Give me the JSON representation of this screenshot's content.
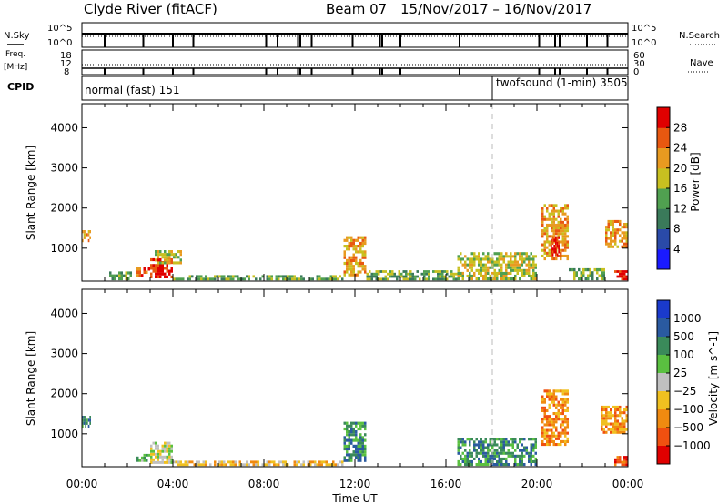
{
  "header": {
    "station": "Clyde River (fitACF)",
    "beam": "Beam 07",
    "dates": "15/Nov/2017 – 16/Nov/2017"
  },
  "params": {
    "nsky_label": "N.Sky",
    "nsky_top": "10^5",
    "nsky_bottom": "10^0",
    "nsearch_label": "N.Search",
    "nsearch_top": "10^5",
    "nsearch_bottom": "10^0",
    "freq_label": "Freq.",
    "freq_unit": "[MHz]",
    "freq_top": "18",
    "freq_mid": "12",
    "freq_bottom": "8",
    "nave_label": "Nave",
    "nave_top": "60",
    "nave_mid": "30",
    "nave_bottom": "0",
    "cpid_label": "CPID",
    "cpid_modes": [
      {
        "name": "normal (fast) 151",
        "start_hour": 0
      },
      {
        "name": "twofsound (1-min) 3505",
        "start_hour": 18
      }
    ]
  },
  "chart_data": [
    {
      "type": "heatmap",
      "title": "",
      "xlabel": "Time UT",
      "ylabel": "Slant Range [km]",
      "xlim": [
        0,
        24
      ],
      "ylim": [
        180,
        4600
      ],
      "x_ticks": [
        "00:00",
        "04:00",
        "08:00",
        "12:00",
        "16:00",
        "20:00",
        "00:00"
      ],
      "y_ticks": [
        1000,
        2000,
        3000,
        4000
      ],
      "colorbar": {
        "label": "Power [dB]",
        "ticks": [
          4,
          8,
          12,
          16,
          20,
          24,
          28
        ],
        "range": [
          0,
          32
        ],
        "colors": [
          "#1a1aff",
          "#2a4aa8",
          "#3a7a5a",
          "#50a050",
          "#c8c020",
          "#e89a20",
          "#e85810",
          "#e00000"
        ]
      },
      "echo_regions": [
        {
          "t0": 0.0,
          "t1": 0.4,
          "r0": 1150,
          "r1": 1450,
          "level": 5
        },
        {
          "t0": 1.2,
          "t1": 2.2,
          "r0": 200,
          "r1": 420,
          "level": 3
        },
        {
          "t0": 2.4,
          "t1": 3.0,
          "r0": 280,
          "r1": 520,
          "level": 6
        },
        {
          "t0": 3.0,
          "t1": 4.0,
          "r0": 250,
          "r1": 750,
          "level": 7
        },
        {
          "t0": 3.2,
          "t1": 4.4,
          "r0": 600,
          "r1": 950,
          "level": 4
        },
        {
          "t0": 4.0,
          "t1": 11.5,
          "r0": 200,
          "r1": 330,
          "level": 3
        },
        {
          "t0": 11.5,
          "t1": 12.5,
          "r0": 300,
          "r1": 1300,
          "level": 5
        },
        {
          "t0": 12.5,
          "t1": 16.5,
          "r0": 200,
          "r1": 450,
          "level": 3
        },
        {
          "t0": 16.5,
          "t1": 20.0,
          "r0": 200,
          "r1": 900,
          "level": 4
        },
        {
          "t0": 20.2,
          "t1": 21.4,
          "r0": 700,
          "r1": 2100,
          "level": 5
        },
        {
          "t0": 20.6,
          "t1": 21.0,
          "r0": 800,
          "r1": 1300,
          "level": 7
        },
        {
          "t0": 21.4,
          "t1": 23.0,
          "r0": 200,
          "r1": 500,
          "level": 3
        },
        {
          "t0": 23.0,
          "t1": 24.0,
          "r0": 1000,
          "r1": 1700,
          "level": 5
        },
        {
          "t0": 23.4,
          "t1": 24.0,
          "r0": 200,
          "r1": 450,
          "level": 7
        }
      ]
    },
    {
      "type": "heatmap",
      "title": "",
      "xlabel": "Time UT",
      "ylabel": "Slant Range [km]",
      "xlim": [
        0,
        24
      ],
      "ylim": [
        180,
        4600
      ],
      "x_ticks": [
        "00:00",
        "04:00",
        "08:00",
        "12:00",
        "16:00",
        "20:00",
        "00:00"
      ],
      "y_ticks": [
        1000,
        2000,
        3000,
        4000
      ],
      "colorbar": {
        "label": "Velocity [m s^-1]",
        "ticks": [
          "1000",
          "500",
          "100",
          "25",
          "−25",
          "−100",
          "−500",
          "−1000"
        ],
        "colors": [
          "#1a3acc",
          "#2a5aa0",
          "#3a8a5a",
          "#5ac040",
          "#c0c0c0",
          "#f0c020",
          "#f08a10",
          "#f05010",
          "#e00000"
        ]
      },
      "echo_regions": [
        {
          "t0": 0.0,
          "t1": 0.4,
          "r0": 1150,
          "r1": 1450,
          "level": 2
        },
        {
          "t0": 2.4,
          "t1": 3.0,
          "r0": 300,
          "r1": 500,
          "level": 3
        },
        {
          "t0": 3.0,
          "t1": 4.0,
          "r0": 250,
          "r1": 800,
          "level": 4
        },
        {
          "t0": 4.0,
          "t1": 11.5,
          "r0": 200,
          "r1": 330,
          "level": 5
        },
        {
          "t0": 11.5,
          "t1": 12.5,
          "r0": 300,
          "r1": 1300,
          "level": 2
        },
        {
          "t0": 16.5,
          "t1": 20.0,
          "r0": 200,
          "r1": 900,
          "level": 2
        },
        {
          "t0": 20.2,
          "t1": 21.4,
          "r0": 700,
          "r1": 2100,
          "level": 6
        },
        {
          "t0": 22.8,
          "t1": 24.0,
          "r0": 1000,
          "r1": 1700,
          "level": 6
        },
        {
          "t0": 23.4,
          "t1": 24.0,
          "r0": 200,
          "r1": 450,
          "level": 7
        }
      ]
    }
  ]
}
